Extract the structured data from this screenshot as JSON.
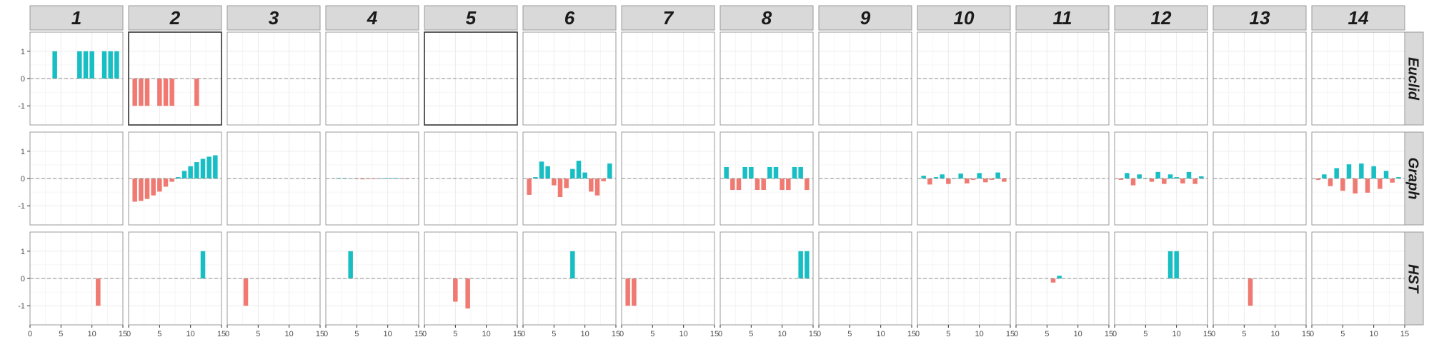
{
  "chart_data": {
    "type": "bar",
    "layout": "facet-grid",
    "columns": [
      "1",
      "2",
      "3",
      "4",
      "5",
      "6",
      "7",
      "8",
      "9",
      "10",
      "11",
      "12",
      "13",
      "14"
    ],
    "rows": [
      "Euclid",
      "Graph",
      "HST"
    ],
    "x_ticks": [
      0,
      5,
      10,
      15
    ],
    "x_tick_labels": [
      "0",
      "5",
      "10",
      "15"
    ],
    "y_ticks": [
      -1,
      0,
      1
    ],
    "y_tick_labels": [
      "-1",
      "0",
      "1"
    ],
    "xlim": [
      0,
      15
    ],
    "ylim": [
      -1.7,
      1.7
    ],
    "grid": true,
    "zero_reference_line": "dashed",
    "colors": {
      "positive": "#17bfc4",
      "negative": "#f07a72",
      "strip_bg": "#d9d9d9",
      "panel_border": "#999999",
      "highlight_border": "#333333",
      "grid": "#ebebeb"
    },
    "highlighted_panels": [
      {
        "row": "Euclid",
        "col": "2"
      },
      {
        "row": "Euclid",
        "col": "5"
      }
    ],
    "panels": {
      "Euclid": {
        "1": [
          [
            4,
            1
          ],
          [
            8,
            1
          ],
          [
            9,
            1
          ],
          [
            10,
            1
          ],
          [
            12,
            1
          ],
          [
            13,
            1
          ],
          [
            14,
            1
          ]
        ],
        "2": [
          [
            1,
            -1
          ],
          [
            2,
            -1
          ],
          [
            3,
            -1
          ],
          [
            5,
            -1
          ],
          [
            6,
            -1
          ],
          [
            7,
            -1
          ],
          [
            11,
            -1
          ]
        ],
        "3": [],
        "4": [],
        "5": [],
        "6": [],
        "7": [],
        "8": [],
        "9": [],
        "10": [],
        "11": [],
        "12": [],
        "13": [],
        "14": []
      },
      "Graph": {
        "1": [],
        "2": [
          [
            1,
            -0.85
          ],
          [
            2,
            -0.82
          ],
          [
            3,
            -0.75
          ],
          [
            4,
            -0.62
          ],
          [
            5,
            -0.48
          ],
          [
            6,
            -0.3
          ],
          [
            7,
            -0.12
          ],
          [
            8,
            0.05
          ],
          [
            9,
            0.28
          ],
          [
            10,
            0.45
          ],
          [
            11,
            0.6
          ],
          [
            12,
            0.72
          ],
          [
            13,
            0.8
          ],
          [
            14,
            0.85
          ]
        ],
        "3": [],
        "4": [
          [
            2,
            0.02
          ],
          [
            3,
            0.02
          ],
          [
            4,
            0.01
          ],
          [
            5,
            -0.02
          ],
          [
            6,
            -0.03
          ],
          [
            7,
            -0.02
          ],
          [
            8,
            -0.01
          ],
          [
            9,
            0.01
          ],
          [
            10,
            0.02
          ],
          [
            11,
            0.02
          ],
          [
            12,
            0.01
          ],
          [
            13,
            -0.01
          ]
        ],
        "5": [],
        "6": [
          [
            1,
            -0.6
          ],
          [
            2,
            0.05
          ],
          [
            3,
            0.62
          ],
          [
            4,
            0.45
          ],
          [
            5,
            -0.25
          ],
          [
            6,
            -0.68
          ],
          [
            7,
            -0.35
          ],
          [
            8,
            0.35
          ],
          [
            9,
            0.65
          ],
          [
            10,
            0.22
          ],
          [
            11,
            -0.48
          ],
          [
            12,
            -0.62
          ],
          [
            13,
            -0.1
          ],
          [
            14,
            0.55
          ]
        ],
        "7": [],
        "8": [
          [
            1,
            0.42
          ],
          [
            2,
            -0.42
          ],
          [
            3,
            -0.42
          ],
          [
            4,
            0.42
          ],
          [
            5,
            0.42
          ],
          [
            6,
            -0.42
          ],
          [
            7,
            -0.42
          ],
          [
            8,
            0.42
          ],
          [
            9,
            0.42
          ],
          [
            10,
            -0.42
          ],
          [
            11,
            -0.42
          ],
          [
            12,
            0.42
          ],
          [
            13,
            0.42
          ],
          [
            14,
            -0.42
          ]
        ],
        "9": [],
        "10": [
          [
            1,
            0.1
          ],
          [
            2,
            -0.22
          ],
          [
            3,
            0.05
          ],
          [
            4,
            0.15
          ],
          [
            5,
            -0.2
          ],
          [
            6,
            0.02
          ],
          [
            7,
            0.18
          ],
          [
            8,
            -0.18
          ],
          [
            9,
            -0.05
          ],
          [
            10,
            0.2
          ],
          [
            11,
            -0.14
          ],
          [
            12,
            -0.05
          ],
          [
            13,
            0.22
          ],
          [
            14,
            -0.12
          ]
        ],
        "11": [],
        "12": [
          [
            1,
            -0.05
          ],
          [
            2,
            0.2
          ],
          [
            3,
            -0.25
          ],
          [
            4,
            0.15
          ],
          [
            5,
            0.02
          ],
          [
            6,
            -0.12
          ],
          [
            7,
            0.24
          ],
          [
            8,
            -0.2
          ],
          [
            9,
            0.15
          ],
          [
            10,
            0.05
          ],
          [
            11,
            -0.18
          ],
          [
            12,
            0.24
          ],
          [
            13,
            -0.2
          ],
          [
            14,
            0.08
          ]
        ],
        "13": [],
        "14": [
          [
            1,
            -0.05
          ],
          [
            2,
            0.15
          ],
          [
            3,
            -0.28
          ],
          [
            4,
            0.38
          ],
          [
            5,
            -0.45
          ],
          [
            6,
            0.52
          ],
          [
            7,
            -0.55
          ],
          [
            8,
            0.55
          ],
          [
            9,
            -0.52
          ],
          [
            10,
            0.45
          ],
          [
            11,
            -0.38
          ],
          [
            12,
            0.28
          ],
          [
            13,
            -0.15
          ],
          [
            14,
            0.05
          ]
        ]
      },
      "HST": {
        "1": [
          [
            11,
            -1
          ]
        ],
        "2": [
          [
            12,
            1
          ]
        ],
        "3": [
          [
            3,
            -1
          ]
        ],
        "4": [
          [
            4,
            1
          ]
        ],
        "5": [
          [
            5,
            -0.85
          ],
          [
            7,
            -1.1
          ]
        ],
        "6": [
          [
            8,
            1
          ]
        ],
        "7": [
          [
            1,
            -1
          ],
          [
            2,
            -1
          ]
        ],
        "8": [
          [
            13,
            1
          ],
          [
            14,
            1
          ]
        ],
        "9": [],
        "10": [],
        "11": [
          [
            6,
            -0.15
          ],
          [
            7,
            0.1
          ]
        ],
        "12": [
          [
            9,
            1
          ],
          [
            10,
            1
          ]
        ],
        "13": [
          [
            6,
            -1
          ]
        ],
        "14": []
      }
    }
  }
}
